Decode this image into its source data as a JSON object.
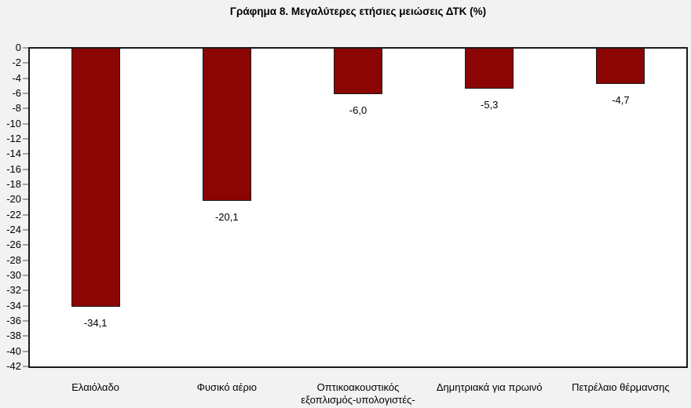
{
  "title": "Γράφημα 8. Μεγαλύτερες ετήσιες μειώσεις ΔΤΚ (%)",
  "chart_data": {
    "type": "bar",
    "title": "Γράφημα 8. Μεγαλύτερες ετήσιες μειώσεις ΔΤΚ (%)",
    "orientation": "vertical",
    "categories": [
      "Ελαιόλαδο",
      "Φυσικό αέριο",
      "Οπτικοακουστικός εξοπλισμός-υπολογιστές-",
      "Δημητριακά για πρωινό",
      "Πετρέλαιο θέρμανσης"
    ],
    "values": [
      -34.1,
      -20.1,
      -6.0,
      -5.3,
      -4.7
    ],
    "value_labels": [
      "-34,1",
      "-20,1",
      "-6,0",
      "-5,3",
      "-4,7"
    ],
    "xlabel": "",
    "ylabel": "",
    "ylim": [
      -42,
      0
    ],
    "y_tick_step": 2,
    "y_ticks": [
      "0",
      "-2",
      "-4",
      "-6",
      "-8",
      "-10",
      "-12",
      "-14",
      "-16",
      "-18",
      "-20",
      "-22",
      "-24",
      "-26",
      "-28",
      "-30",
      "-32",
      "-34",
      "-36",
      "-38",
      "-40",
      "-42"
    ],
    "grid": false,
    "legend": "none",
    "colors": {
      "bar_fill": "#8B0505",
      "bar_border": "#1b1b1b",
      "plot_background": "#FFFFFF",
      "page_background": "#F2F2F2",
      "axis_line": "#1a1a1a",
      "tick_mark": "#a3a3a3",
      "text": "#000000"
    }
  }
}
